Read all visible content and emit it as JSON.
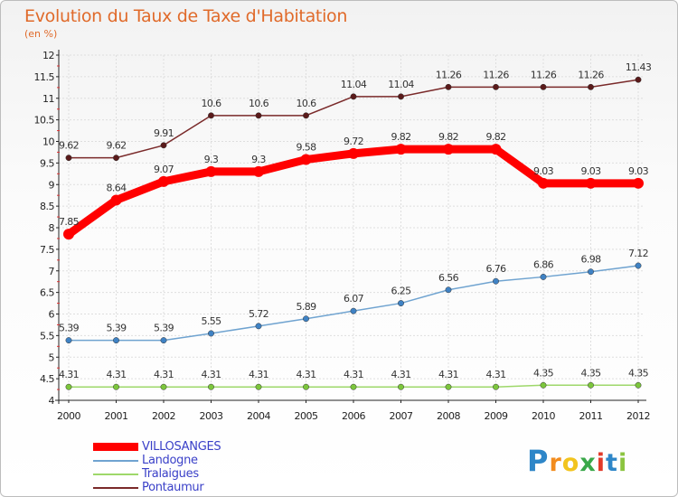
{
  "header": {
    "title": "Evolution du Taux de Taxe d'Habitation",
    "subtitle": "(en %)"
  },
  "chart_data": {
    "type": "line",
    "x": [
      2000,
      2001,
      2002,
      2003,
      2004,
      2005,
      2006,
      2007,
      2008,
      2009,
      2010,
      2011,
      2012
    ],
    "ylim": [
      4,
      12
    ],
    "yticks": [
      "4",
      "4.5",
      "5",
      "5.5",
      "6",
      "6.5",
      "7",
      "7.5",
      "8",
      "8.5",
      "9",
      "9.5",
      "10",
      "10.5",
      "11",
      "11.5",
      "12"
    ],
    "grid": true,
    "legend_position": "bottom-left",
    "series": [
      {
        "name": "VILLOSANGES",
        "color": "#ff0000",
        "marker": "#ff0000",
        "thick": true,
        "values": [
          7.85,
          8.64,
          9.07,
          9.3,
          9.3,
          9.58,
          9.72,
          9.82,
          9.82,
          9.82,
          9.03,
          9.03,
          9.03
        ],
        "labels": [
          "7.85",
          "8.64",
          "9.07",
          "9.3",
          "9.3",
          "9.58",
          "9.72",
          "9.82",
          "9.82",
          "9.82",
          "9.03",
          "9.03",
          "9.03"
        ]
      },
      {
        "name": "Landogne",
        "color": "#6fa3d0",
        "marker": "#3f82c4",
        "thick": false,
        "values": [
          5.39,
          5.39,
          5.39,
          5.55,
          5.72,
          5.89,
          6.07,
          6.25,
          6.56,
          6.76,
          6.86,
          6.98,
          7.12
        ],
        "labels": [
          "5.39",
          "5.39",
          "5.39",
          "5.55",
          "5.72",
          "5.89",
          "6.07",
          "6.25",
          "6.56",
          "6.76",
          "6.86",
          "6.98",
          "7.12"
        ]
      },
      {
        "name": "Tralaigues",
        "color": "#9ed86a",
        "marker": "#7cc63c",
        "thick": false,
        "values": [
          4.31,
          4.31,
          4.31,
          4.31,
          4.31,
          4.31,
          4.31,
          4.31,
          4.31,
          4.31,
          4.35,
          4.35,
          4.35
        ],
        "labels": [
          "4.31",
          "4.31",
          "4.31",
          "4.31",
          "4.31",
          "4.31",
          "4.31",
          "4.31",
          "4.31",
          "4.31",
          "4.35",
          "4.35",
          "4.35"
        ]
      },
      {
        "name": "Pontaumur",
        "color": "#7a2a2a",
        "marker": "#5a1a1a",
        "thick": false,
        "values": [
          9.62,
          9.62,
          9.91,
          10.6,
          10.6,
          10.6,
          11.04,
          11.04,
          11.26,
          11.26,
          11.26,
          11.26,
          11.43
        ],
        "labels": [
          "9.62",
          "9.62",
          "9.91",
          "10.6",
          "10.6",
          "10.6",
          "11.04",
          "11.04",
          "11.26",
          "11.26",
          "11.26",
          "11.26",
          "11.43"
        ]
      }
    ]
  },
  "logo": {
    "letters": [
      "P",
      "r",
      "o",
      "x",
      "i",
      "t",
      "i"
    ],
    "colors": [
      "#2e86c8",
      "#f28c1e",
      "#f2c41e",
      "#3aa84a",
      "#e23a2a",
      "#2e86c8",
      "#8bc43f"
    ]
  }
}
